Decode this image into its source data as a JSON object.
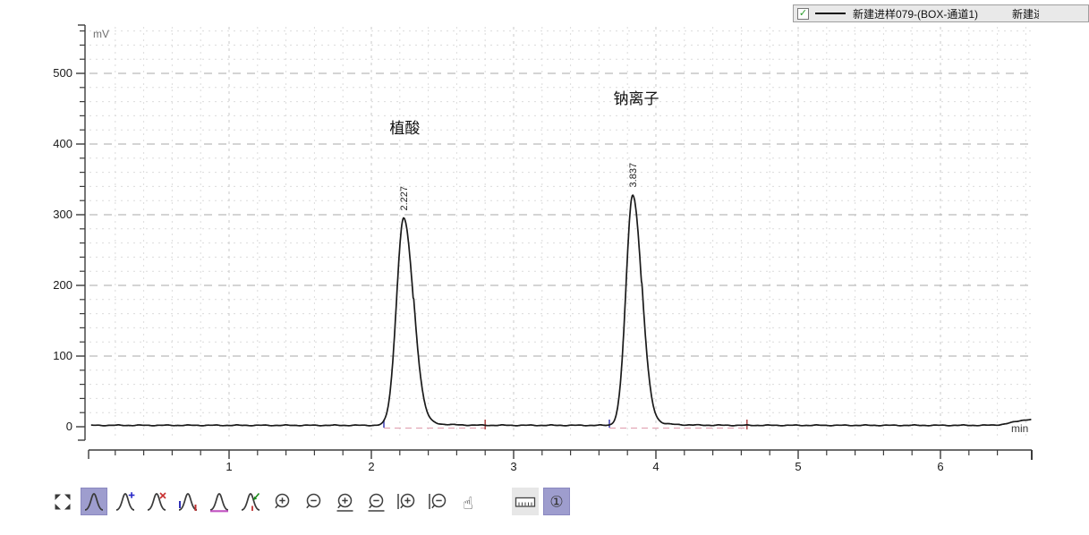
{
  "legend": {
    "checkbox_checked": true,
    "check_glyph": "✓",
    "series_label": "新建进样079-(BOX-通道1)",
    "next_label_truncated": "新建进",
    "line_color": "#111111",
    "background": "#e9e9e9"
  },
  "chart_data": {
    "type": "line",
    "title": "",
    "xlabel": "min",
    "ylabel": "mV",
    "xlim": [
      0,
      6.64
    ],
    "ylim": [
      -20,
      565
    ],
    "xticks": [
      1,
      2,
      3,
      4,
      5,
      6
    ],
    "yticks": [
      0,
      100,
      200,
      300,
      400,
      500
    ],
    "x_minor_step": 0.2,
    "y_minor_step": 20,
    "grid": true,
    "legend_position": "top-right",
    "baseline_mv": 2,
    "colors": {
      "signal": "#1a1a1a",
      "grid_minor": "#dcdcdc",
      "grid_major_h": "#a9a9a9",
      "grid_major_v": "#c8c8c8",
      "axis": "#3c3c3c",
      "tick_text": "#1a1a1a",
      "unit_text": "#6e6e6e"
    },
    "series": [
      {
        "name": "新建进样079-(BOX-通道1)",
        "color": "#1a1a1a",
        "peaks": [
          {
            "name": "植酸",
            "rt_min": 2.227,
            "rt_label": "2.227",
            "height_mv": 293,
            "start_min": 2.06,
            "end_min": 2.8,
            "sigma_left": 0.05,
            "sigma_right": 0.068,
            "tail_mv": 9,
            "tail_tau": 0.12,
            "name_label_min": 2.235,
            "name_label_mv": 415
          },
          {
            "name": "钠离子",
            "rt_min": 3.837,
            "rt_label": "3.837",
            "height_mv": 326,
            "start_min": 3.67,
            "end_min": 4.64,
            "sigma_left": 0.047,
            "sigma_right": 0.063,
            "tail_mv": 9,
            "tail_tau": 0.12,
            "name_label_min": 3.862,
            "name_label_mv": 457
          }
        ]
      }
    ],
    "integration": {
      "regions": [
        {
          "start_min": 2.088,
          "end_min": 2.8
        },
        {
          "start_min": 3.673,
          "end_min": 4.64
        }
      ],
      "start_tick_color": "#4a4ab8",
      "end_tick_color": "#b05050",
      "baseline_color": "#e2a7b6"
    },
    "end_disturbance": {
      "center_min": 6.62,
      "height_mv": 8,
      "sigma": 0.1
    }
  },
  "toolbar": {
    "selected_bg": "#9e9dce",
    "channel_glyph": "①",
    "items": [
      {
        "name": "full-scale",
        "state": "normal"
      },
      {
        "name": "peak-tool",
        "state": "selected"
      },
      {
        "name": "add-peak",
        "state": "normal"
      },
      {
        "name": "delete-peak",
        "state": "normal"
      },
      {
        "name": "peak-start-end",
        "state": "normal"
      },
      {
        "name": "baseline-tool",
        "state": "normal"
      },
      {
        "name": "tangent-skim",
        "state": "normal"
      },
      {
        "name": "zoom-in",
        "state": "normal"
      },
      {
        "name": "zoom-out",
        "state": "normal"
      },
      {
        "name": "zoom-in-full",
        "state": "normal"
      },
      {
        "name": "zoom-out-full",
        "state": "normal"
      },
      {
        "name": "zoom-in-x",
        "state": "normal"
      },
      {
        "name": "zoom-out-x",
        "state": "normal"
      },
      {
        "name": "pan-hand",
        "state": "normal"
      },
      {
        "name": "spacer",
        "state": "normal"
      },
      {
        "name": "ruler",
        "state": "light"
      },
      {
        "name": "channel-1",
        "state": "selected"
      }
    ]
  }
}
